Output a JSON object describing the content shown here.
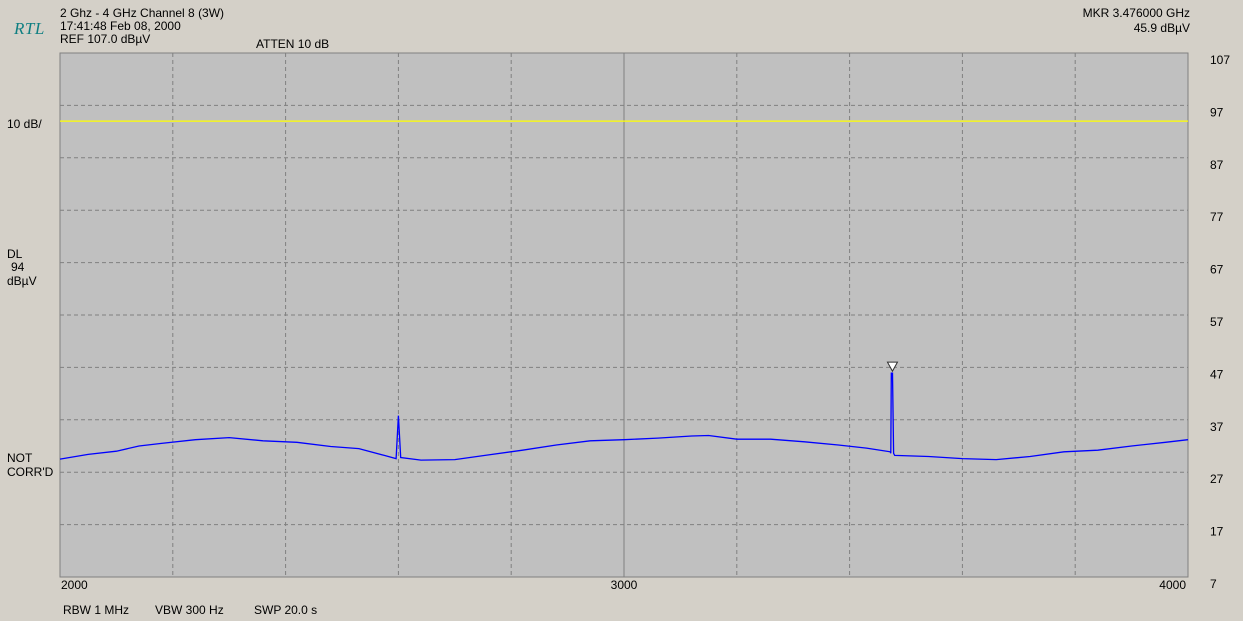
{
  "header": {
    "logo": "RTL",
    "title": "2 Ghz - 4 GHz Channel 8 (3W)",
    "timestamp": "17:41:48 Feb 08, 2000",
    "ref_level": "REF 107.0 dBµV",
    "atten": "ATTEN 10 dB",
    "marker_freq": "MKR 3.476000 GHz",
    "marker_level": "45.9 dBµV"
  },
  "left_annotations": {
    "scale": "10 dB/",
    "display_line_label": "DL",
    "display_line_value": "94",
    "display_line_unit": "dBµV",
    "corr_line1": "NOT",
    "corr_line2": "CORR'D"
  },
  "footer": {
    "rbw": "RBW 1 MHz",
    "vbw": "VBW 300 Hz",
    "sweep": "SWP 20.0 s"
  },
  "colors": {
    "trace": "#0000ff",
    "display_line": "#ffff00",
    "grid_background": "#c0c0c0",
    "grid_lines": "#808080",
    "logo": "#0f7f82"
  },
  "chart_data": {
    "type": "line",
    "xlim": [
      2000,
      4000
    ],
    "ylim": [
      7,
      107
    ],
    "x_tick_labels": [
      "2000",
      "3000",
      "4000"
    ],
    "x_tick_values": [
      2000,
      3000,
      4000
    ],
    "y_tick_labels": [
      "107",
      "97",
      "87",
      "77",
      "67",
      "57",
      "47",
      "37",
      "27",
      "17",
      "7"
    ],
    "y_tick_values": [
      107,
      97,
      87,
      77,
      67,
      57,
      47,
      37,
      27,
      17,
      7
    ],
    "grid": true,
    "display_line": 94,
    "marker": {
      "x": 3476,
      "y": 45.9
    },
    "series": [
      {
        "points": [
          [
            2000,
            29.5
          ],
          [
            2050,
            30.4
          ],
          [
            2100,
            31.0
          ],
          [
            2140,
            32.0
          ],
          [
            2180,
            32.5
          ],
          [
            2240,
            33.2
          ],
          [
            2300,
            33.6
          ],
          [
            2360,
            33.0
          ],
          [
            2420,
            32.7
          ],
          [
            2480,
            31.9
          ],
          [
            2530,
            31.5
          ],
          [
            2575,
            30.2
          ],
          [
            2596,
            29.6
          ],
          [
            2600,
            37.8
          ],
          [
            2604,
            29.8
          ],
          [
            2640,
            29.3
          ],
          [
            2700,
            29.4
          ],
          [
            2760,
            30.3
          ],
          [
            2820,
            31.2
          ],
          [
            2880,
            32.2
          ],
          [
            2940,
            33.0
          ],
          [
            3000,
            33.2
          ],
          [
            3060,
            33.5
          ],
          [
            3120,
            33.9
          ],
          [
            3150,
            34.0
          ],
          [
            3200,
            33.3
          ],
          [
            3260,
            33.3
          ],
          [
            3320,
            32.8
          ],
          [
            3380,
            32.2
          ],
          [
            3430,
            31.6
          ],
          [
            3472,
            30.9
          ],
          [
            3473,
            30.6
          ],
          [
            3474,
            45.9
          ],
          [
            3476,
            45.9
          ],
          [
            3478,
            30.6
          ],
          [
            3480,
            30.2
          ],
          [
            3540,
            30.0
          ],
          [
            3600,
            29.6
          ],
          [
            3660,
            29.4
          ],
          [
            3720,
            30.0
          ],
          [
            3780,
            30.9
          ],
          [
            3840,
            31.2
          ],
          [
            3900,
            32.0
          ],
          [
            3960,
            32.7
          ],
          [
            4000,
            33.2
          ]
        ]
      }
    ]
  }
}
